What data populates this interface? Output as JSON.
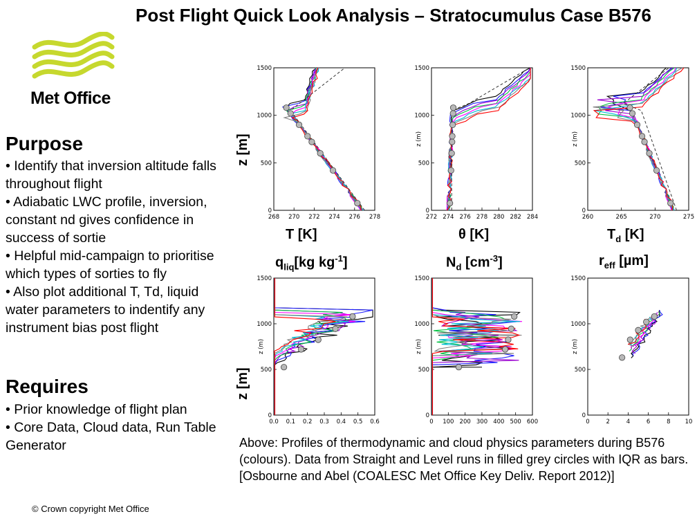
{
  "title": "Post Flight Quick Look Analysis – Stratocumulus Case B576",
  "logo": {
    "text": "Met Office",
    "wave_color": "#c6d82e"
  },
  "purpose": {
    "heading": "Purpose",
    "bullets": [
      "• Identify that inversion altitude falls throughout flight",
      "• Adiabatic LWC profile, inversion, constant nd gives confidence in success of sortie",
      "• Helpful mid-campaign to prioritise which types of sorties to fly",
      "• Also plot additional T, Td, liquid water parameters to indentify any instrument bias post flight"
    ]
  },
  "requires": {
    "heading": "Requires",
    "bullets": [
      "• Prior knowledge of flight plan",
      "• Core Data, Cloud data, Run Table Generator"
    ]
  },
  "figure": {
    "ylabel": "z [m]",
    "top_row": [
      {
        "xlabel_main": "T [K]",
        "xlabel_sub": "",
        "xticks": [
          "268",
          "270",
          "272",
          "274",
          "276",
          "278"
        ],
        "yticks": [
          "0",
          "500",
          "1000",
          "1500"
        ],
        "ytitle": ""
      },
      {
        "xlabel_main": "θ [K]",
        "xlabel_sub": "",
        "xticks": [
          "272",
          "274",
          "276",
          "278",
          "280",
          "282",
          "284"
        ],
        "yticks": [
          "0",
          "500",
          "1000",
          "1500"
        ],
        "ytitle": "z (m)"
      },
      {
        "xlabel_main": "T",
        "xlabel_sub": "d",
        "xlabel_tail": " [K]",
        "xticks": [
          "260",
          "265",
          "270",
          "275"
        ],
        "yticks": [
          "0",
          "500",
          "1000",
          "1500"
        ],
        "ytitle": "z (m)"
      }
    ],
    "bottom_labels": {
      "qliq": {
        "main": "q",
        "sub": "liq",
        "tail1": "[kg kg",
        "sup": "-1",
        "tail2": "]"
      },
      "nd": {
        "main": "N",
        "sub": "d",
        "tail1": " [cm",
        "sup": "-3",
        "tail2": "]"
      },
      "reff": {
        "main": "r",
        "sub": "eff",
        "tail1": " [µm]"
      }
    },
    "bottom_row": [
      {
        "xticks": [
          "0.0",
          "0.1",
          "0.2",
          "0.3",
          "0.4",
          "0.5",
          "0.6"
        ],
        "yticks": [
          "0",
          "500",
          "1000",
          "1500"
        ],
        "ytitle": "z (m)"
      },
      {
        "xticks": [
          "0",
          "100",
          "200",
          "300",
          "400",
          "500",
          "600"
        ],
        "yticks": [
          "0",
          "500",
          "1000",
          "1500"
        ],
        "ytitle": "z (m)"
      },
      {
        "xticks": [
          "0",
          "2",
          "4",
          "6",
          "8",
          "10"
        ],
        "yticks": [
          "0",
          "500",
          "1000",
          "1500"
        ],
        "ytitle": "z (m)"
      }
    ],
    "series_colors": [
      "#000000",
      "#1a1aff",
      "#9a00d0",
      "#00c040",
      "#ff00ff",
      "#00bcd4",
      "#808080",
      "#ff0000"
    ]
  },
  "caption": "Above: Profiles of thermodynamic and cloud physics parameters during B576 (colours). Data from Straight and Level runs in filled grey circles with IQR as bars.  [Osbourne and Abel (COALESC Met Office Key Deliv. Report 2012)]",
  "copyright": "© Crown copyright   Met Office"
}
